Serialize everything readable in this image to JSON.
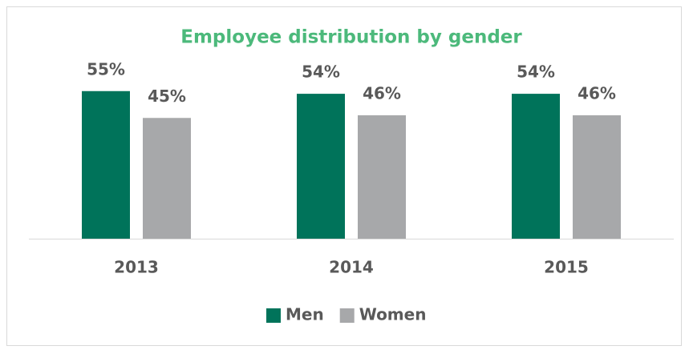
{
  "chart_data": {
    "type": "bar",
    "title": "Employee distribution by gender",
    "categories": [
      "2013",
      "2014",
      "2015"
    ],
    "series": [
      {
        "name": "Men",
        "color": "#00735a",
        "values": [
          55,
          54,
          54
        ],
        "value_labels": [
          "55%",
          "54%",
          "54%"
        ]
      },
      {
        "name": "Women",
        "color": "#a7a8aa",
        "values": [
          45,
          46,
          46
        ],
        "value_labels": [
          "45%",
          "46%",
          "46%"
        ]
      }
    ],
    "legend": "bottom"
  }
}
